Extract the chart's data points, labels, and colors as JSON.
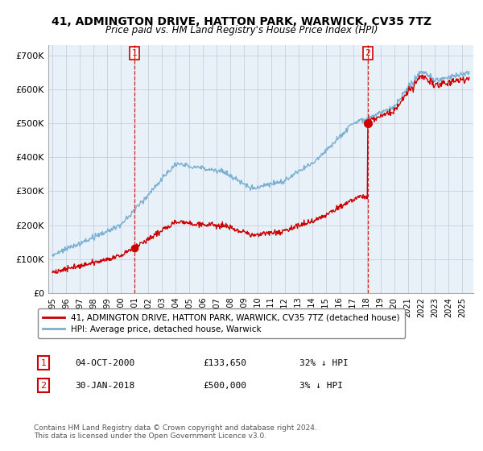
{
  "title": "41, ADMINGTON DRIVE, HATTON PARK, WARWICK, CV35 7TZ",
  "subtitle": "Price paid vs. HM Land Registry's House Price Index (HPI)",
  "ylabel_ticks": [
    "£0",
    "£100K",
    "£200K",
    "£300K",
    "£400K",
    "£500K",
    "£600K",
    "£700K"
  ],
  "ytick_values": [
    0,
    100000,
    200000,
    300000,
    400000,
    500000,
    600000,
    700000
  ],
  "ylim": [
    0,
    730000
  ],
  "hpi_color": "#7ab0d4",
  "price_color": "#cc0000",
  "marker1_date": 2001.0,
  "marker1_price": 133650,
  "marker1_label": "04-OCT-2000",
  "marker1_amount": "£133,650",
  "marker1_pct": "32% ↓ HPI",
  "marker2_date": 2018.08,
  "marker2_price": 500000,
  "marker2_label": "30-JAN-2018",
  "marker2_amount": "£500,000",
  "marker2_pct": "3% ↓ HPI",
  "legend_label1": "41, ADMINGTON DRIVE, HATTON PARK, WARWICK, CV35 7TZ (detached house)",
  "legend_label2": "HPI: Average price, detached house, Warwick",
  "footer": "Contains HM Land Registry data © Crown copyright and database right 2024.\nThis data is licensed under the Open Government Licence v3.0.",
  "background_color": "#ffffff",
  "chart_bg_color": "#e8f0f8",
  "grid_color": "#c0c8d8"
}
